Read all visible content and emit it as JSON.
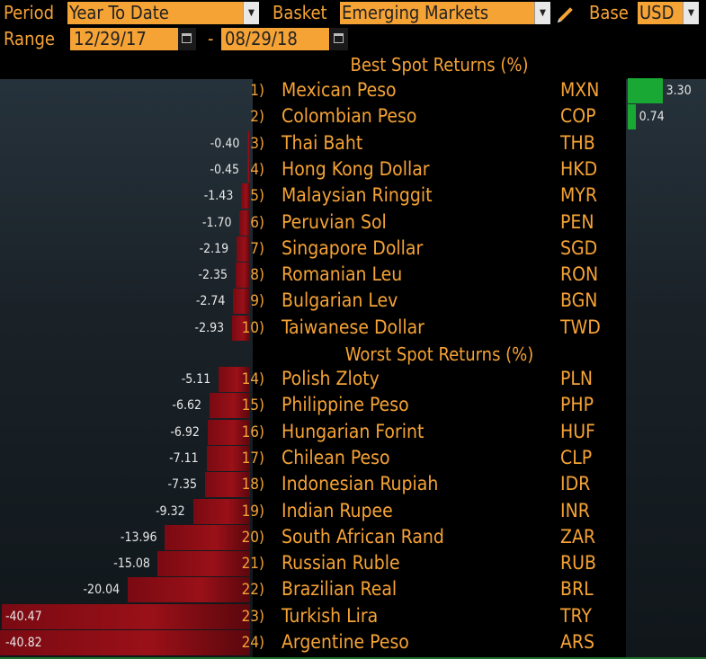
{
  "controls": {
    "period_label": "Period",
    "period_value": "Year To Date",
    "basket_label": "Basket",
    "basket_value": "Emerging Markets",
    "base_label": "Base",
    "base_value": "USD",
    "range_label": "Range",
    "range_start": "12/29/17",
    "range_sep": "-",
    "range_end": "08/29/18"
  },
  "icons": [
    "chevron-down-icon",
    "pencil-icon",
    "calendar-icon"
  ],
  "colors": {
    "accent": "#f6a335",
    "positive": "#19a833",
    "negative": "#9a1018"
  },
  "scale_max_abs": 40.82,
  "best": {
    "title": "Best Spot Returns (%)",
    "rows": [
      {
        "rank": "1)",
        "name": "Mexican Peso",
        "code": "MXN",
        "value": 3.3,
        "label": "3.30"
      },
      {
        "rank": "2)",
        "name": "Colombian Peso",
        "code": "COP",
        "value": 0.74,
        "label": "0.74"
      },
      {
        "rank": "3)",
        "name": "Thai Baht",
        "code": "THB",
        "value": -0.4,
        "label": "-0.40"
      },
      {
        "rank": "4)",
        "name": "Hong Kong Dollar",
        "code": "HKD",
        "value": -0.45,
        "label": "-0.45"
      },
      {
        "rank": "5)",
        "name": "Malaysian Ringgit",
        "code": "MYR",
        "value": -1.43,
        "label": "-1.43"
      },
      {
        "rank": "6)",
        "name": "Peruvian Sol",
        "code": "PEN",
        "value": -1.7,
        "label": "-1.70"
      },
      {
        "rank": "7)",
        "name": "Singapore Dollar",
        "code": "SGD",
        "value": -2.19,
        "label": "-2.19"
      },
      {
        "rank": "8)",
        "name": "Romanian Leu",
        "code": "RON",
        "value": -2.35,
        "label": "-2.35"
      },
      {
        "rank": "9)",
        "name": "Bulgarian Lev",
        "code": "BGN",
        "value": -2.74,
        "label": "-2.74"
      },
      {
        "rank": "10)",
        "name": "Taiwanese Dollar",
        "code": "TWD",
        "value": -2.93,
        "label": "-2.93"
      }
    ]
  },
  "worst": {
    "title": "Worst Spot Returns (%)",
    "rows": [
      {
        "rank": "14)",
        "name": "Polish Zloty",
        "code": "PLN",
        "value": -5.11,
        "label": "-5.11"
      },
      {
        "rank": "15)",
        "name": "Philippine Peso",
        "code": "PHP",
        "value": -6.62,
        "label": "-6.62"
      },
      {
        "rank": "16)",
        "name": "Hungarian Forint",
        "code": "HUF",
        "value": -6.92,
        "label": "-6.92"
      },
      {
        "rank": "17)",
        "name": "Chilean Peso",
        "code": "CLP",
        "value": -7.11,
        "label": "-7.11"
      },
      {
        "rank": "18)",
        "name": "Indonesian Rupiah",
        "code": "IDR",
        "value": -7.35,
        "label": "-7.35"
      },
      {
        "rank": "19)",
        "name": "Indian Rupee",
        "code": "INR",
        "value": -9.32,
        "label": "-9.32"
      },
      {
        "rank": "20)",
        "name": "South African Rand",
        "code": "ZAR",
        "value": -13.96,
        "label": "-13.96"
      },
      {
        "rank": "21)",
        "name": "Russian Ruble",
        "code": "RUB",
        "value": -15.08,
        "label": "-15.08"
      },
      {
        "rank": "22)",
        "name": "Brazilian Real",
        "code": "BRL",
        "value": -20.04,
        "label": "-20.04"
      },
      {
        "rank": "23)",
        "name": "Turkish Lira",
        "code": "TRY",
        "value": -40.47,
        "label": "-40.47"
      },
      {
        "rank": "24)",
        "name": "Argentine Peso",
        "code": "ARS",
        "value": -40.82,
        "label": "-40.82"
      }
    ]
  }
}
